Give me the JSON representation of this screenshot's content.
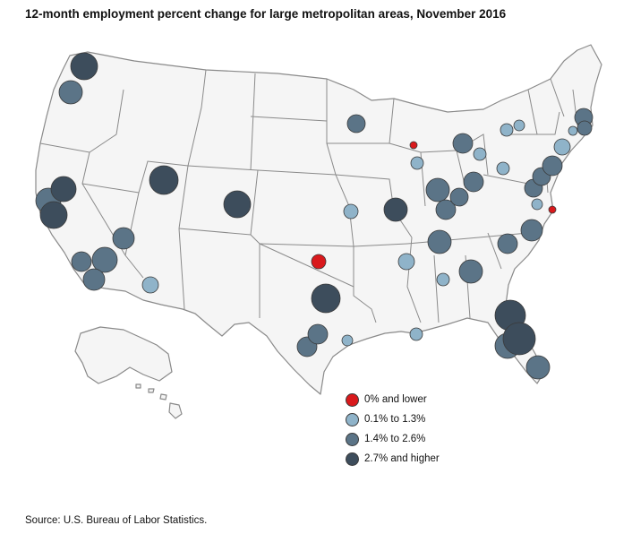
{
  "title": "12-month employment percent change for large metropolitan areas, November 2016",
  "source": "Source: U.S. Bureau of Labor Statistics.",
  "legend": [
    {
      "label": "0% and lower",
      "color": "#d9191c"
    },
    {
      "label": "0.1% to 1.3%",
      "color": "#8fb3c9"
    },
    {
      "label": "1.4% to 2.6%",
      "color": "#5b7487"
    },
    {
      "label": "2.7% and higher",
      "color": "#3d4d5c"
    }
  ]
}
